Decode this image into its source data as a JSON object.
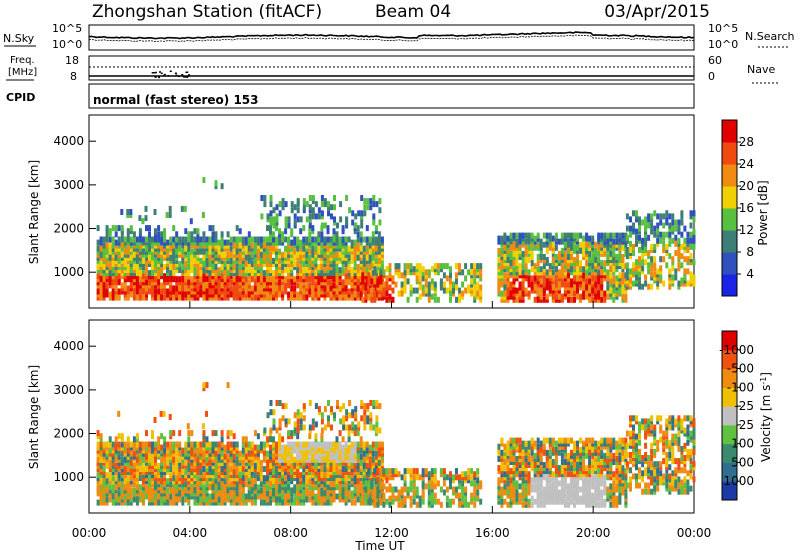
{
  "header": {
    "station": "Zhongshan Station (fitACF)",
    "beam": "Beam 04",
    "date": "03/Apr/2015"
  },
  "noise_panel": {
    "left_label": "N.Sky",
    "right_label": "N.Search",
    "left_ticks": [
      "10^5",
      "10^0"
    ],
    "right_ticks": [
      "10^5",
      "10^0"
    ]
  },
  "freq_panel": {
    "left_label_1": "Freq.",
    "left_label_2": "[MHz]",
    "left_ticks": [
      "18",
      "8"
    ],
    "right_label": "Nave",
    "right_ticks": [
      "60",
      "0"
    ]
  },
  "cpid_panel": {
    "label": "CPID",
    "value": "normal (fast stereo) 153"
  },
  "chart_data": [
    {
      "type": "heatmap",
      "title": "",
      "xlabel": "Time UT",
      "ylabel": "Slant Range [km]",
      "x_range_hours": [
        0,
        24
      ],
      "ylim": [
        180,
        4600
      ],
      "yticks": [
        "1000",
        "2000",
        "3000",
        "4000"
      ],
      "colorbar": {
        "label": "Power [dB]",
        "ticks": [
          "4",
          "8",
          "12",
          "16",
          "20",
          "24",
          "28"
        ],
        "colors": [
          "#1a23e6",
          "#3050c0",
          "#3d7f75",
          "#58c040",
          "#f0d000",
          "#f08a10",
          "#f04a10",
          "#e00000"
        ]
      }
    },
    {
      "type": "heatmap",
      "title": "",
      "xlabel": "Time UT",
      "ylabel": "Slant Range [km]",
      "x_range_hours": [
        0,
        24
      ],
      "ylim": [
        180,
        4600
      ],
      "yticks": [
        "1000",
        "2000",
        "3000",
        "4000"
      ],
      "colorbar": {
        "label": "Velocity [m s^-1]",
        "ticks": [
          "1000",
          "500",
          "100",
          "25",
          "-25",
          "-100",
          "-500",
          "-1000"
        ],
        "colors": [
          "#1c3aa6",
          "#2f6e8e",
          "#3a8a70",
          "#60c040",
          "#c0c0c0",
          "#f0c000",
          "#f08a10",
          "#f05010",
          "#e00000"
        ]
      }
    }
  ],
  "x_axis": {
    "title": "Time UT",
    "ticks": [
      "00:00",
      "04:00",
      "08:00",
      "12:00",
      "16:00",
      "20:00",
      "00:00"
    ]
  }
}
